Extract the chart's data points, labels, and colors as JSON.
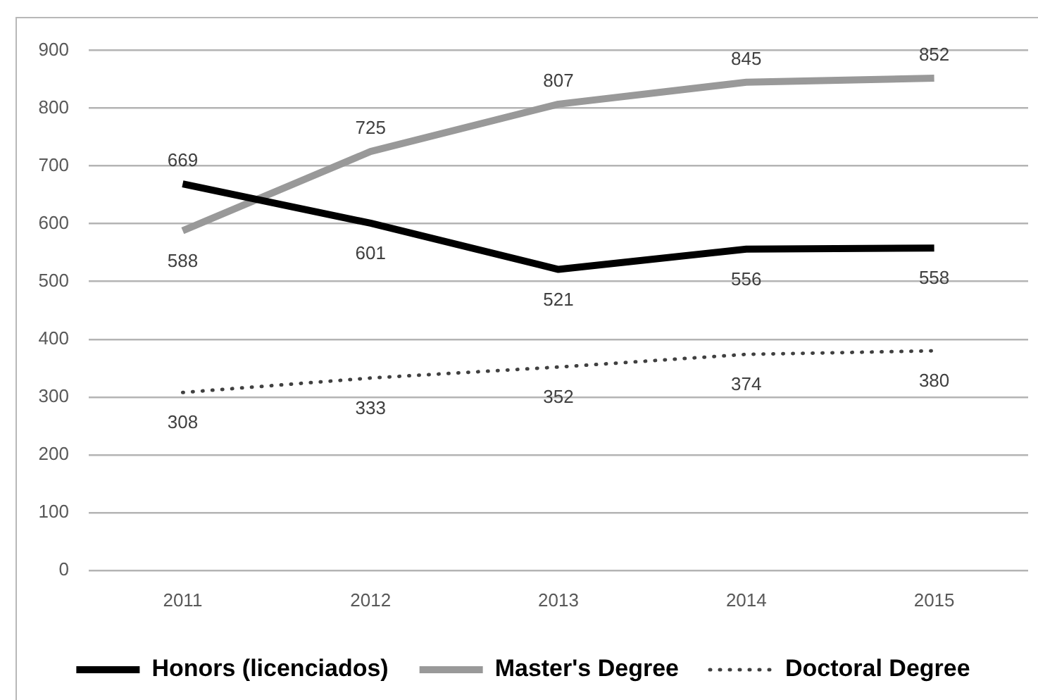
{
  "chart_data": {
    "type": "line",
    "categories": [
      "2011",
      "2012",
      "2013",
      "2014",
      "2015"
    ],
    "series": [
      {
        "name": "Honors (licenciados)",
        "color": "#000000",
        "values": [
          669,
          601,
          521,
          556,
          558
        ]
      },
      {
        "name": "Master's Degree",
        "color": "#999999",
        "values": [
          588,
          725,
          807,
          845,
          852
        ]
      },
      {
        "name": "Doctoral Degree",
        "color": "#404040",
        "values": [
          308,
          333,
          352,
          374,
          380
        ],
        "line_style": "dotted"
      }
    ],
    "ylim": [
      0,
      900
    ],
    "yticks": [
      0,
      100,
      200,
      300,
      400,
      500,
      600,
      700,
      800,
      900
    ],
    "grid": "y",
    "legend": "bottom",
    "data_labels": true,
    "marker": "none",
    "line_style": "solid"
  }
}
